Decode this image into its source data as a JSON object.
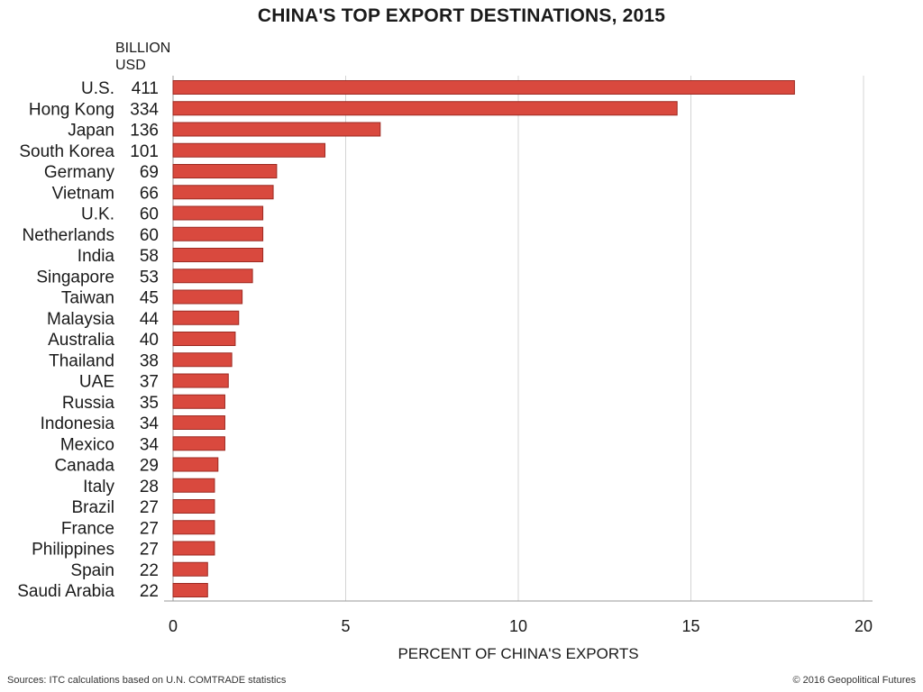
{
  "chart_data": {
    "type": "bar",
    "orientation": "horizontal",
    "title": "CHINA'S TOP EXPORT DESTINATIONS, 2015",
    "value_column_header": [
      "BILLION",
      "USD"
    ],
    "xlabel": "PERCENT OF CHINA'S EXPORTS",
    "xlim": [
      0,
      20
    ],
    "xticks": [
      0,
      5,
      10,
      15,
      20
    ],
    "grid": "vertical",
    "bar_color": "#d9493e",
    "categories": [
      "U.S.",
      "Hong Kong",
      "Japan",
      "South Korea",
      "Germany",
      "Vietnam",
      "U.K.",
      "Netherlands",
      "India",
      "Singapore",
      "Taiwan",
      "Malaysia",
      "Australia",
      "Thailand",
      "UAE",
      "Russia",
      "Indonesia",
      "Mexico",
      "Canada",
      "Italy",
      "Brazil",
      "France",
      "Philippines",
      "Spain",
      "Saudi Arabia"
    ],
    "billion_usd": [
      411,
      334,
      136,
      101,
      69,
      66,
      60,
      60,
      58,
      53,
      45,
      44,
      40,
      38,
      37,
      35,
      34,
      34,
      29,
      28,
      27,
      27,
      27,
      22,
      22
    ],
    "values": [
      18.0,
      14.6,
      6.0,
      4.4,
      3.0,
      2.9,
      2.6,
      2.6,
      2.6,
      2.3,
      2.0,
      1.9,
      1.8,
      1.7,
      1.6,
      1.5,
      1.5,
      1.5,
      1.3,
      1.2,
      1.2,
      1.2,
      1.2,
      1.0,
      1.0
    ]
  },
  "footer": {
    "source": "Sources: ITC calculations based on U.N. COMTRADE statistics",
    "copyright": "© 2016 Geopolitical Futures"
  }
}
